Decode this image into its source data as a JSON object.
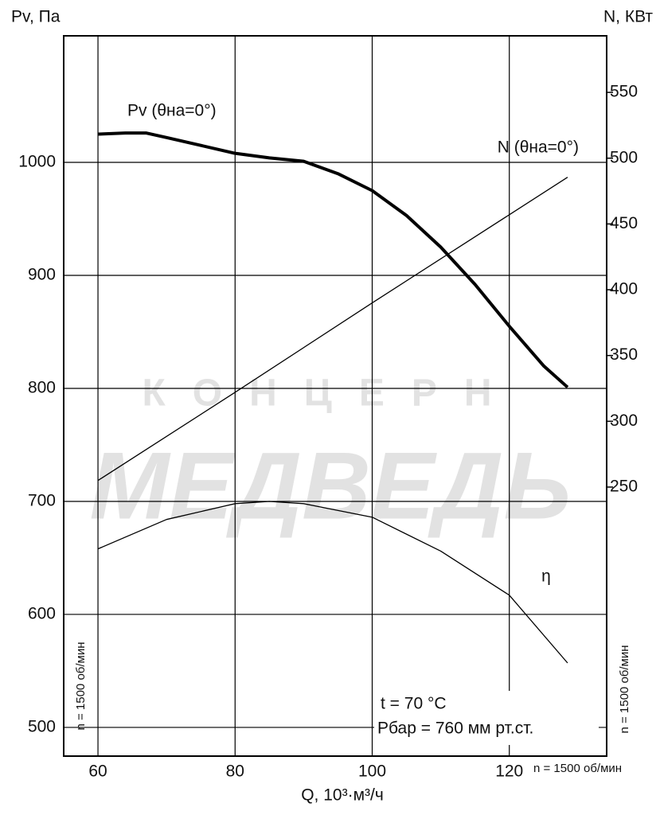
{
  "chart_data": {
    "type": "line",
    "y_label": "Pv, Па",
    "y2_label": "N, КВт",
    "x_label": "Q, 10³·м³/ч",
    "xlim": [
      55,
      134.2
    ],
    "xticks": [
      60,
      80,
      100,
      120
    ],
    "ylim": [
      474.6,
      1112
    ],
    "yticks": [
      500,
      600,
      700,
      800,
      900,
      1000
    ],
    "y2lim": [
      45.5,
      593
    ],
    "y2ticks": [
      250,
      300,
      350,
      400,
      450,
      500,
      550
    ],
    "grid": true,
    "series": [
      {
        "name": "Pv (θна=0°)",
        "color": "#000000",
        "width": 4,
        "axis": "y",
        "x": [
          60,
          64,
          67,
          70,
          75,
          80,
          85,
          90,
          95,
          100,
          105,
          110,
          115,
          120,
          125,
          128.5
        ],
        "values": [
          1025,
          1026,
          1026,
          1022,
          1015,
          1008,
          1004,
          1001,
          990,
          975,
          953,
          925,
          892,
          855,
          820,
          801
        ]
      },
      {
        "name": "N (θна=0°)",
        "color": "#000000",
        "width": 1.3,
        "axis": "y2",
        "x": [
          60,
          80,
          100,
          120,
          128.5
        ],
        "values": [
          255,
          322,
          390,
          457,
          485.5
        ]
      },
      {
        "name": "η",
        "color": "#000000",
        "width": 1.3,
        "axis": "y",
        "x": [
          60,
          70,
          80,
          85,
          90,
          100,
          110,
          120,
          128.5
        ],
        "values": [
          658,
          684,
          698,
          700,
          698,
          686,
          656,
          617,
          557
        ]
      }
    ],
    "annotations": [
      "t = 70 °C",
      "Pбар = 760 мм рт.ст.",
      "n = 1500 об/мин",
      "n = 1500 об/мин",
      "n = 1500 об/мин"
    ],
    "watermark": [
      "КОНЦЕРН",
      "МЕДВЕДЬ"
    ]
  }
}
